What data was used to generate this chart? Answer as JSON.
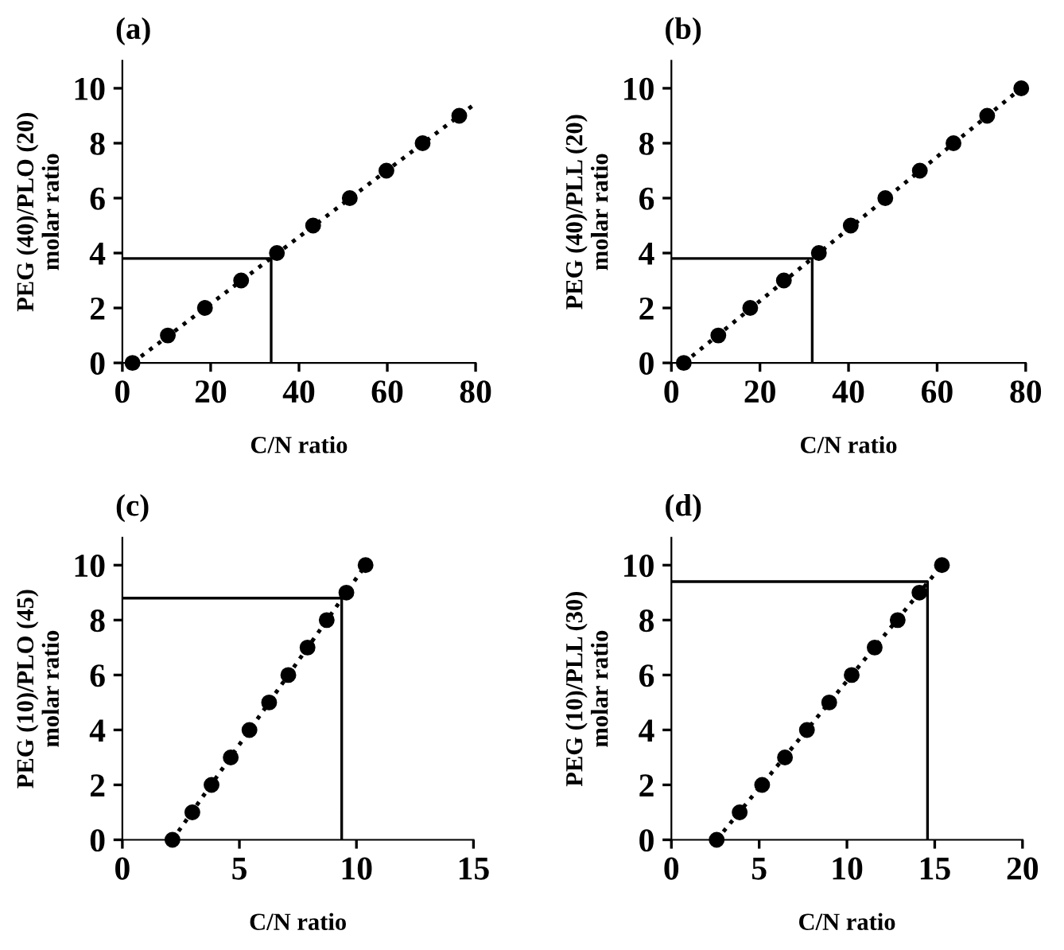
{
  "chart_data": [
    {
      "type": "scatter",
      "title": "(a)",
      "xlabel": "C/N ratio",
      "ylabel": "PEG (40)/PLO (20)\nmolar ratio",
      "xlim": [
        0,
        80
      ],
      "xticks": [
        0,
        20,
        40,
        60,
        80
      ],
      "ylim": [
        0,
        11
      ],
      "yticks": [
        0,
        2,
        4,
        6,
        8,
        10
      ],
      "series": [
        {
          "type": "scatter",
          "color": "#000000",
          "marker": "circle",
          "x": [
            2.3,
            10.3,
            18.7,
            26.9,
            35.0,
            43.2,
            51.5,
            59.8,
            68.0,
            76.3
          ],
          "values": [
            0,
            1,
            2,
            3,
            4,
            5,
            6,
            7,
            8,
            9
          ]
        },
        {
          "type": "line",
          "color": "#000000",
          "line_style": "dotted",
          "marker": "none",
          "x": [
            2.3,
            80
          ],
          "values": [
            0,
            9.45
          ]
        },
        {
          "type": "line",
          "color": "#000000",
          "line_style": "solid",
          "marker": "none",
          "x": [
            0,
            33.7,
            33.7
          ],
          "values": [
            3.8,
            3.8,
            0
          ]
        }
      ]
    },
    {
      "type": "scatter",
      "title": "(b)",
      "xlabel": "C/N ratio",
      "ylabel": "PEG (40)/PLL (20)\nmolar ratio",
      "xlim": [
        0,
        80
      ],
      "xticks": [
        0,
        20,
        40,
        60,
        80
      ],
      "ylim": [
        0,
        11
      ],
      "yticks": [
        0,
        2,
        4,
        6,
        8,
        10
      ],
      "series": [
        {
          "type": "scatter",
          "color": "#000000",
          "marker": "circle",
          "x": [
            2.8,
            10.6,
            17.8,
            25.4,
            33.3,
            40.5,
            48.3,
            56.1,
            63.7,
            71.3,
            79.0
          ],
          "values": [
            0,
            1,
            2,
            3,
            4,
            5,
            6,
            7,
            8,
            9,
            10
          ]
        },
        {
          "type": "line",
          "color": "#000000",
          "line_style": "dotted",
          "marker": "none",
          "x": [
            2.8,
            79.0
          ],
          "values": [
            0,
            10
          ]
        },
        {
          "type": "line",
          "color": "#000000",
          "line_style": "solid",
          "marker": "none",
          "x": [
            0,
            31.8,
            31.8
          ],
          "values": [
            3.8,
            3.8,
            0
          ]
        }
      ]
    },
    {
      "type": "scatter",
      "title": "(c)",
      "xlabel": "C/N ratio",
      "ylabel": "PEG (10)/PLO (45)\nmolar ratio",
      "xlim": [
        0,
        15
      ],
      "xticks": [
        0,
        5,
        10,
        15
      ],
      "ylim": [
        0,
        11
      ],
      "yticks": [
        0,
        2,
        4,
        6,
        8,
        10
      ],
      "series": [
        {
          "type": "scatter",
          "color": "#000000",
          "marker": "circle",
          "x": [
            2.14,
            2.99,
            3.81,
            4.63,
            5.43,
            6.27,
            7.09,
            7.91,
            8.73,
            9.57,
            10.39
          ],
          "values": [
            0,
            1,
            2,
            3,
            4,
            5,
            6,
            7,
            8,
            9,
            10
          ]
        },
        {
          "type": "line",
          "color": "#000000",
          "line_style": "dotted",
          "marker": "none",
          "x": [
            2.14,
            10.39
          ],
          "values": [
            0,
            10
          ]
        },
        {
          "type": "line",
          "color": "#000000",
          "line_style": "solid",
          "marker": "none",
          "x": [
            0,
            9.37,
            9.37
          ],
          "values": [
            8.8,
            8.8,
            0
          ]
        }
      ]
    },
    {
      "type": "scatter",
      "title": "(d)",
      "xlabel": "C/N ratio",
      "ylabel": "PEG (10)/PLL (30)\nmolar ratio",
      "xlim": [
        0,
        20
      ],
      "xticks": [
        0,
        5,
        10,
        15,
        20
      ],
      "ylim": [
        0,
        11
      ],
      "yticks": [
        0,
        2,
        4,
        6,
        8,
        10
      ],
      "series": [
        {
          "type": "scatter",
          "color": "#000000",
          "marker": "circle",
          "x": [
            2.58,
            3.89,
            5.17,
            6.47,
            7.72,
            8.99,
            10.27,
            11.58,
            12.89,
            14.13,
            15.41
          ],
          "values": [
            0,
            1,
            2,
            3,
            4,
            5,
            6,
            7,
            8,
            9,
            10
          ]
        },
        {
          "type": "line",
          "color": "#000000",
          "line_style": "dotted",
          "marker": "none",
          "x": [
            2.58,
            15.41
          ],
          "values": [
            0,
            10
          ]
        },
        {
          "type": "line",
          "color": "#000000",
          "line_style": "solid",
          "marker": "none",
          "x": [
            0,
            14.59,
            14.59
          ],
          "values": [
            9.4,
            9.4,
            0
          ]
        }
      ]
    }
  ]
}
